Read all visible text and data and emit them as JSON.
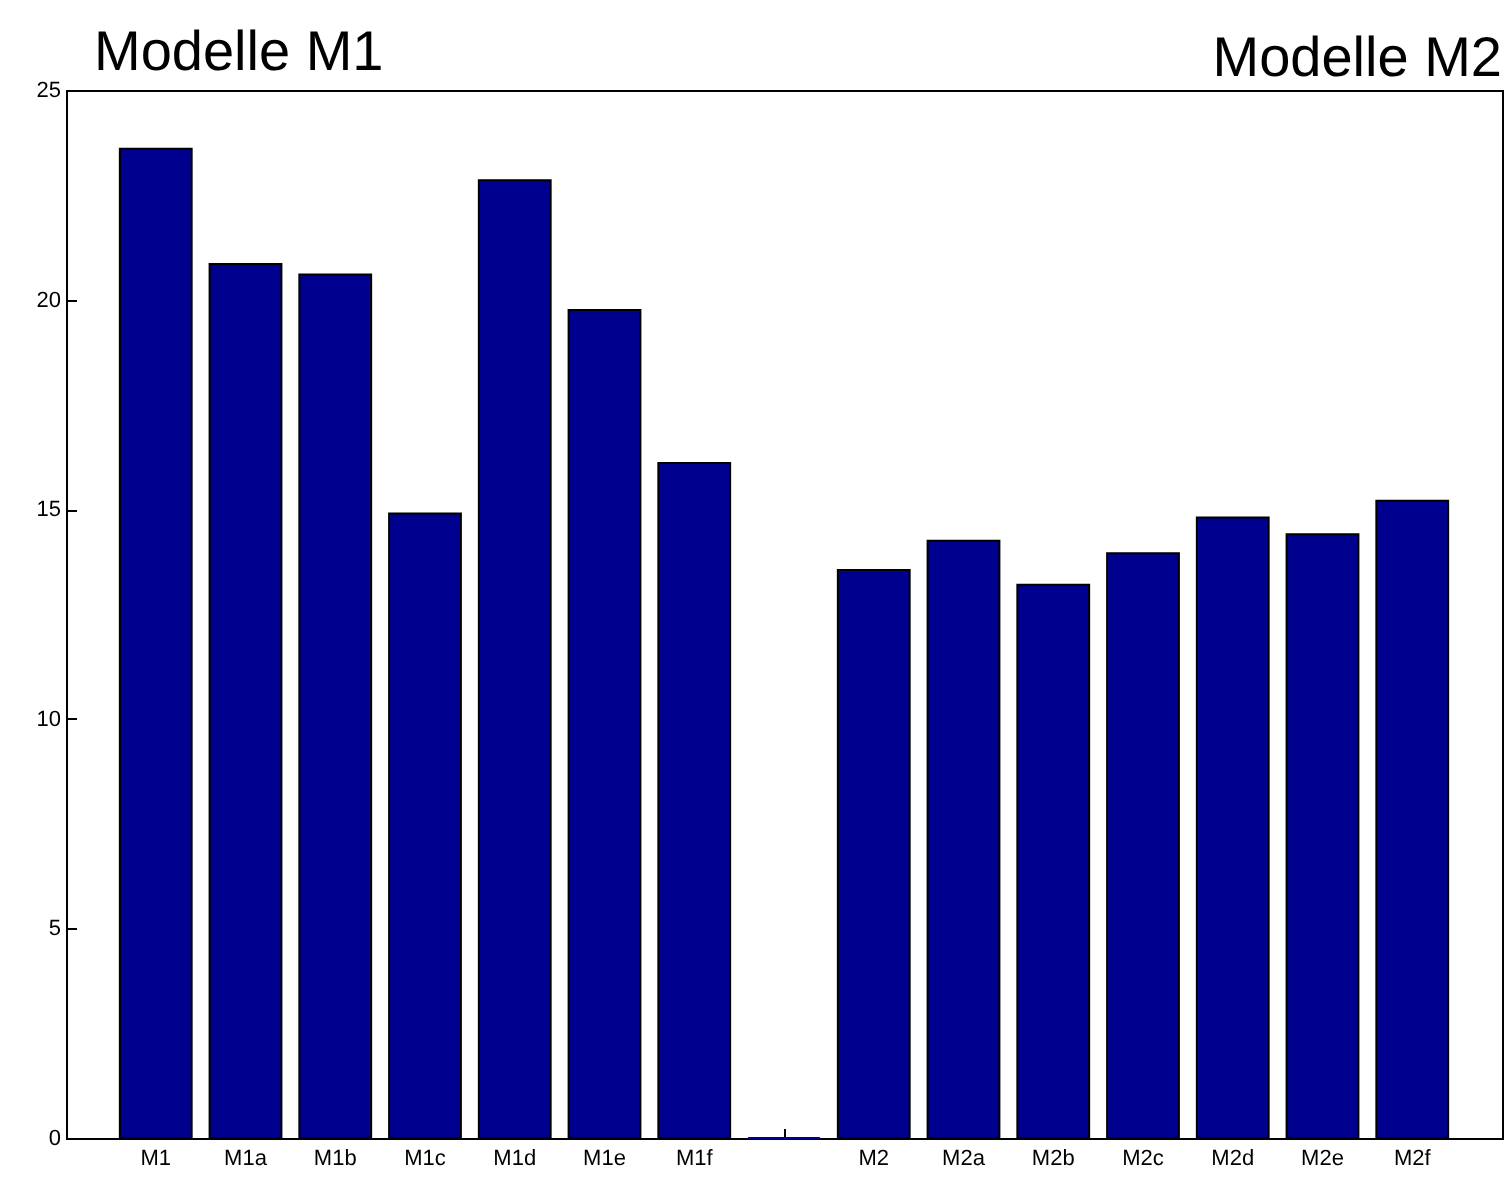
{
  "chart_data": {
    "type": "bar",
    "categories": [
      "M1",
      "M1a",
      "M1b",
      "M1c",
      "M1d",
      "M1e",
      "M1f",
      null,
      "M2",
      "M2a",
      "M2b",
      "M2c",
      "M2d",
      "M2e",
      "M2f"
    ],
    "values": [
      23.6,
      20.85,
      20.6,
      14.9,
      22.85,
      19.75,
      16.1,
      0,
      13.55,
      14.25,
      13.2,
      13.95,
      14.8,
      14.4,
      15.2
    ],
    "color": "#00008f",
    "ylim": [
      0,
      25
    ],
    "yticks": [
      0,
      5,
      10,
      15,
      20,
      25
    ],
    "annotations": [
      "Modelle M1",
      "Modelle M2"
    ]
  }
}
